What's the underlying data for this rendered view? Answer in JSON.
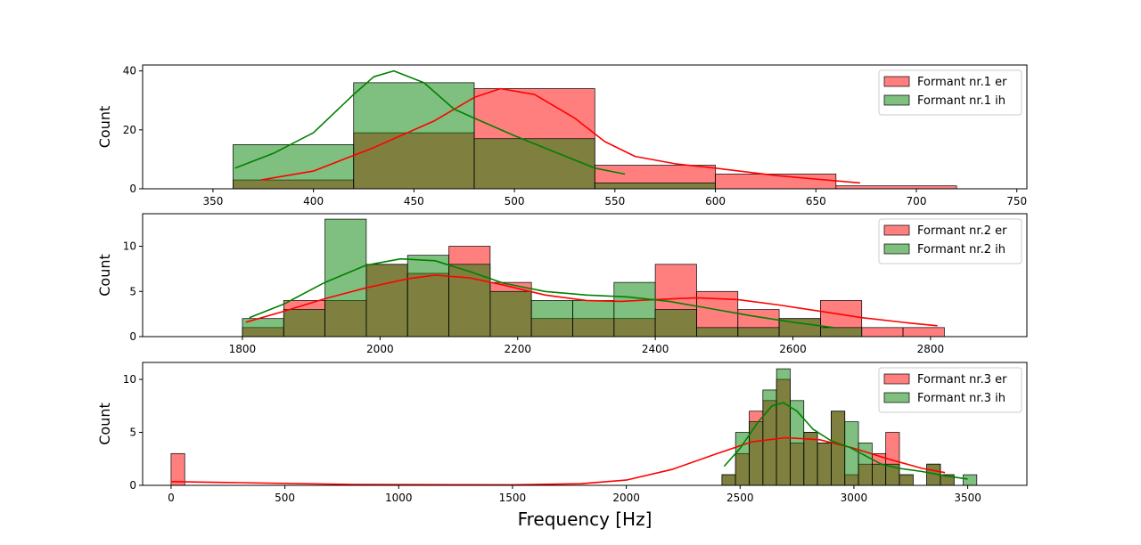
{
  "figure": {
    "xlabel": "Frequency [Hz]"
  },
  "colors": {
    "er": "#ff0000",
    "ih": "#008000",
    "overlap": "#807f3f"
  },
  "chart_data": [
    {
      "type": "histogram",
      "title": "",
      "xlabel": "",
      "ylabel": "Count",
      "xlim": [
        315,
        755
      ],
      "ylim": [
        0,
        42
      ],
      "xticks": [
        350,
        400,
        450,
        500,
        550,
        600,
        650,
        700,
        750
      ],
      "yticks": [
        0,
        20,
        40
      ],
      "legend_position": "top-right",
      "series": [
        {
          "name": "Formant nr.1 er",
          "bins": [
            {
              "x0": 360,
              "x1": 420,
              "count": 3
            },
            {
              "x0": 420,
              "x1": 480,
              "count": 19
            },
            {
              "x0": 480,
              "x1": 540,
              "count": 34
            },
            {
              "x0": 540,
              "x1": 600,
              "count": 8
            },
            {
              "x0": 600,
              "x1": 660,
              "count": 5
            },
            {
              "x0": 660,
              "x1": 720,
              "count": 1
            }
          ],
          "kde": [
            [
              374,
              3
            ],
            [
              400,
              6
            ],
            [
              430,
              14
            ],
            [
              460,
              23
            ],
            [
              480,
              31
            ],
            [
              493,
              34
            ],
            [
              510,
              32
            ],
            [
              530,
              24
            ],
            [
              545,
              16
            ],
            [
              560,
              11
            ],
            [
              580,
              8.5
            ],
            [
              600,
              7
            ],
            [
              630,
              4.5
            ],
            [
              655,
              3
            ],
            [
              672,
              2
            ]
          ]
        },
        {
          "name": "Formant nr.1 ih",
          "bins": [
            {
              "x0": 360,
              "x1": 420,
              "count": 15
            },
            {
              "x0": 420,
              "x1": 480,
              "count": 36
            },
            {
              "x0": 480,
              "x1": 540,
              "count": 17
            },
            {
              "x0": 540,
              "x1": 600,
              "count": 2
            }
          ],
          "kde": [
            [
              361,
              7
            ],
            [
              380,
              12
            ],
            [
              400,
              19
            ],
            [
              420,
              32
            ],
            [
              430,
              38
            ],
            [
              440,
              40
            ],
            [
              455,
              36
            ],
            [
              470,
              27
            ],
            [
              480,
              24
            ],
            [
              500,
              18
            ],
            [
              520,
              12.5
            ],
            [
              540,
              7
            ],
            [
              555,
              5
            ]
          ]
        }
      ]
    },
    {
      "type": "histogram",
      "title": "",
      "xlabel": "",
      "ylabel": "Count",
      "xlim": [
        1655,
        2940
      ],
      "ylim": [
        0,
        13.6
      ],
      "xticks": [
        1800,
        2000,
        2200,
        2400,
        2600,
        2800
      ],
      "yticks": [
        0,
        5,
        10
      ],
      "legend_position": "top-right",
      "series": [
        {
          "name": "Formant nr.2 er",
          "bins": [
            {
              "x0": 1800,
              "x1": 1860,
              "count": 1
            },
            {
              "x0": 1860,
              "x1": 1920,
              "count": 4
            },
            {
              "x0": 1920,
              "x1": 1980,
              "count": 4
            },
            {
              "x0": 1980,
              "x1": 2040,
              "count": 8
            },
            {
              "x0": 2040,
              "x1": 2100,
              "count": 7
            },
            {
              "x0": 2100,
              "x1": 2160,
              "count": 10
            },
            {
              "x0": 2160,
              "x1": 2220,
              "count": 6
            },
            {
              "x0": 2220,
              "x1": 2280,
              "count": 2
            },
            {
              "x0": 2280,
              "x1": 2340,
              "count": 2
            },
            {
              "x0": 2340,
              "x1": 2400,
              "count": 2
            },
            {
              "x0": 2400,
              "x1": 2460,
              "count": 8
            },
            {
              "x0": 2460,
              "x1": 2520,
              "count": 5
            },
            {
              "x0": 2520,
              "x1": 2580,
              "count": 3
            },
            {
              "x0": 2580,
              "x1": 2640,
              "count": 2
            },
            {
              "x0": 2640,
              "x1": 2700,
              "count": 4
            },
            {
              "x0": 2700,
              "x1": 2760,
              "count": 1
            },
            {
              "x0": 2760,
              "x1": 2820,
              "count": 1
            }
          ],
          "kde": [
            [
              1805,
              1.6
            ],
            [
              1860,
              2.8
            ],
            [
              1920,
              4.2
            ],
            [
              1980,
              5.4
            ],
            [
              2040,
              6.4
            ],
            [
              2080,
              6.8
            ],
            [
              2130,
              6.5
            ],
            [
              2180,
              5.7
            ],
            [
              2240,
              4.6
            ],
            [
              2300,
              4.0
            ],
            [
              2350,
              3.9
            ],
            [
              2400,
              4.1
            ],
            [
              2460,
              4.3
            ],
            [
              2520,
              4.1
            ],
            [
              2580,
              3.5
            ],
            [
              2640,
              2.8
            ],
            [
              2700,
              2.1
            ],
            [
              2770,
              1.5
            ],
            [
              2810,
              1.2
            ]
          ]
        },
        {
          "name": "Formant nr.2 ih",
          "bins": [
            {
              "x0": 1800,
              "x1": 1860,
              "count": 2
            },
            {
              "x0": 1860,
              "x1": 1920,
              "count": 3
            },
            {
              "x0": 1920,
              "x1": 1980,
              "count": 13
            },
            {
              "x0": 1980,
              "x1": 2040,
              "count": 8
            },
            {
              "x0": 2040,
              "x1": 2100,
              "count": 9
            },
            {
              "x0": 2100,
              "x1": 2160,
              "count": 8
            },
            {
              "x0": 2160,
              "x1": 2220,
              "count": 5
            },
            {
              "x0": 2220,
              "x1": 2280,
              "count": 4
            },
            {
              "x0": 2280,
              "x1": 2340,
              "count": 4
            },
            {
              "x0": 2340,
              "x1": 2400,
              "count": 6
            },
            {
              "x0": 2400,
              "x1": 2460,
              "count": 3
            },
            {
              "x0": 2460,
              "x1": 2520,
              "count": 1
            },
            {
              "x0": 2520,
              "x1": 2580,
              "count": 1
            },
            {
              "x0": 2580,
              "x1": 2640,
              "count": 2
            },
            {
              "x0": 2640,
              "x1": 2700,
              "count": 1
            }
          ],
          "kde": [
            [
              1810,
              2.1
            ],
            [
              1860,
              3.6
            ],
            [
              1920,
              6.0
            ],
            [
              1980,
              7.9
            ],
            [
              2030,
              8.6
            ],
            [
              2080,
              8.4
            ],
            [
              2130,
              7.2
            ],
            [
              2180,
              5.9
            ],
            [
              2240,
              5.0
            ],
            [
              2300,
              4.6
            ],
            [
              2360,
              4.4
            ],
            [
              2420,
              3.9
            ],
            [
              2480,
              3.1
            ],
            [
              2540,
              2.3
            ],
            [
              2600,
              1.6
            ],
            [
              2660,
              1.0
            ]
          ]
        }
      ]
    },
    {
      "type": "histogram",
      "title": "",
      "xlabel": "Frequency [Hz]",
      "ylabel": "Count",
      "xlim": [
        -125,
        3760
      ],
      "ylim": [
        0,
        11.6
      ],
      "xticks": [
        0,
        500,
        1000,
        1500,
        2000,
        2500,
        3000,
        3500
      ],
      "yticks": [
        0,
        5,
        10
      ],
      "legend_position": "top-right",
      "series": [
        {
          "name": "Formant nr.3 er",
          "bins": [
            {
              "x0": 0,
              "x1": 60,
              "count": 3
            },
            {
              "x0": 2420,
              "x1": 2480,
              "count": 1
            },
            {
              "x0": 2480,
              "x1": 2540,
              "count": 3
            },
            {
              "x0": 2540,
              "x1": 2600,
              "count": 7
            },
            {
              "x0": 2600,
              "x1": 2660,
              "count": 8
            },
            {
              "x0": 2660,
              "x1": 2720,
              "count": 10
            },
            {
              "x0": 2720,
              "x1": 2780,
              "count": 4
            },
            {
              "x0": 2780,
              "x1": 2840,
              "count": 5
            },
            {
              "x0": 2840,
              "x1": 2900,
              "count": 4
            },
            {
              "x0": 2900,
              "x1": 2960,
              "count": 7
            },
            {
              "x0": 2960,
              "x1": 3020,
              "count": 1
            },
            {
              "x0": 3020,
              "x1": 3080,
              "count": 2
            },
            {
              "x0": 3080,
              "x1": 3140,
              "count": 3
            },
            {
              "x0": 3140,
              "x1": 3200,
              "count": 5
            },
            {
              "x0": 3200,
              "x1": 3260,
              "count": 1
            },
            {
              "x0": 3320,
              "x1": 3380,
              "count": 2
            },
            {
              "x0": 3380,
              "x1": 3440,
              "count": 1
            }
          ],
          "kde": [
            [
              0,
              0.35
            ],
            [
              300,
              0.25
            ],
            [
              800,
              0.08
            ],
            [
              1500,
              0.05
            ],
            [
              1800,
              0.15
            ],
            [
              2000,
              0.5
            ],
            [
              2200,
              1.5
            ],
            [
              2400,
              3.0
            ],
            [
              2550,
              4.1
            ],
            [
              2700,
              4.5
            ],
            [
              2850,
              4.3
            ],
            [
              3000,
              3.5
            ],
            [
              3150,
              2.5
            ],
            [
              3300,
              1.6
            ],
            [
              3400,
              1.2
            ]
          ]
        },
        {
          "name": "Formant nr.3 ih",
          "bins": [
            {
              "x0": 2420,
              "x1": 2480,
              "count": 1
            },
            {
              "x0": 2480,
              "x1": 2540,
              "count": 5
            },
            {
              "x0": 2540,
              "x1": 2600,
              "count": 6
            },
            {
              "x0": 2600,
              "x1": 2660,
              "count": 9
            },
            {
              "x0": 2660,
              "x1": 2720,
              "count": 11
            },
            {
              "x0": 2720,
              "x1": 2780,
              "count": 8
            },
            {
              "x0": 2780,
              "x1": 2840,
              "count": 5
            },
            {
              "x0": 2840,
              "x1": 2900,
              "count": 4
            },
            {
              "x0": 2900,
              "x1": 2960,
              "count": 7
            },
            {
              "x0": 2960,
              "x1": 3020,
              "count": 6
            },
            {
              "x0": 3020,
              "x1": 3080,
              "count": 4
            },
            {
              "x0": 3080,
              "x1": 3140,
              "count": 2
            },
            {
              "x0": 3140,
              "x1": 3200,
              "count": 2
            },
            {
              "x0": 3200,
              "x1": 3260,
              "count": 1
            },
            {
              "x0": 3320,
              "x1": 3380,
              "count": 2
            },
            {
              "x0": 3380,
              "x1": 3440,
              "count": 1
            },
            {
              "x0": 3480,
              "x1": 3540,
              "count": 1
            }
          ],
          "kde": [
            [
              2430,
              1.8
            ],
            [
              2500,
              3.5
            ],
            [
              2580,
              6.0
            ],
            [
              2640,
              7.5
            ],
            [
              2690,
              7.8
            ],
            [
              2750,
              7.0
            ],
            [
              2820,
              5.3
            ],
            [
              2900,
              4.2
            ],
            [
              2980,
              3.6
            ],
            [
              3050,
              2.8
            ],
            [
              3120,
              2.0
            ],
            [
              3200,
              1.6
            ],
            [
              3300,
              1.3
            ],
            [
              3400,
              0.9
            ],
            [
              3500,
              0.6
            ]
          ]
        }
      ]
    }
  ]
}
